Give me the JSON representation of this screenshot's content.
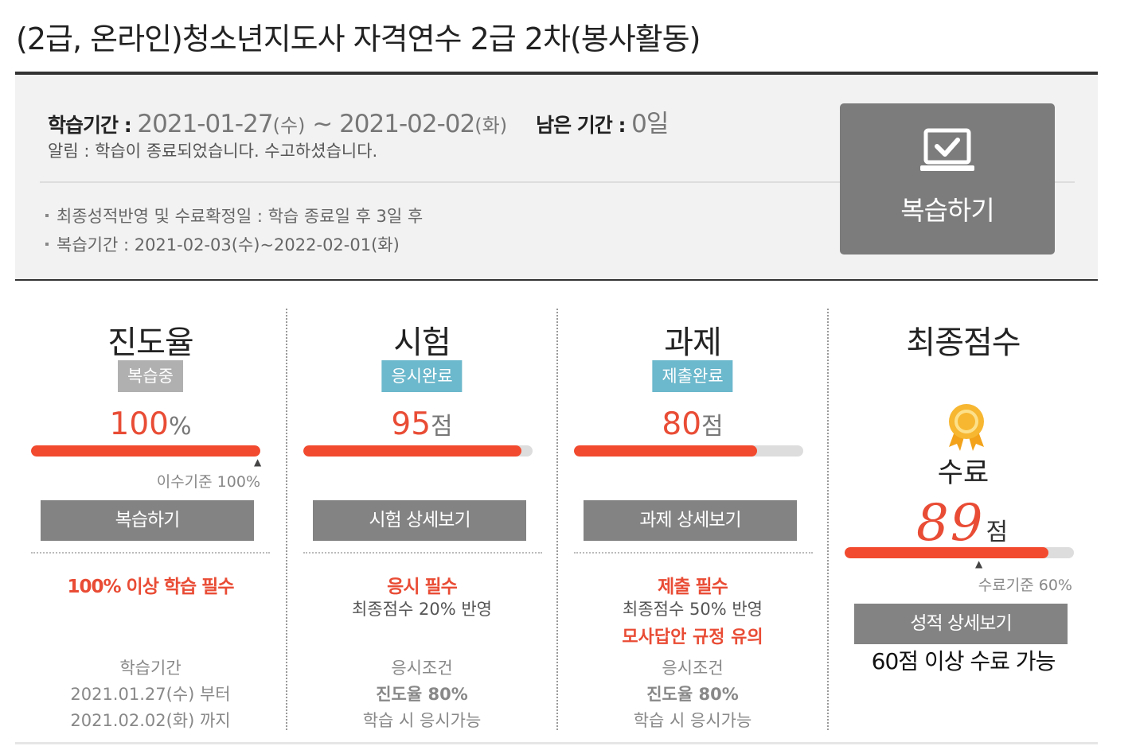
{
  "course": {
    "title": "(2급, 온라인)청소년지도사 자격연수 2급 2차(봉사활동)"
  },
  "info": {
    "period_label": "학습기간 : ",
    "period_start": "2021-01-27",
    "period_start_day": "(수)",
    "period_sep": " ~ ",
    "period_end": "2021-02-02",
    "period_end_day": "(화)",
    "remain_label": "남은 기간 : ",
    "remain_value": "0일",
    "notice": "알림 : 학습이 종료되었습니다. 수고하셨습니다.",
    "bullets": [
      "최종성적반영 및 수료확정일 : 학습 종료일 후 3일 후",
      "복습기간 : 2021-02-03(수)~2022-02-01(화)"
    ],
    "review_button": "복습하기"
  },
  "progress": {
    "title": "진도율",
    "badge": "복습중",
    "value": "100",
    "unit": "%",
    "fill_percent": 100,
    "criterion": "이수기준 100%",
    "button": "복습하기",
    "requirement": "100% 이상 학습 필수",
    "period_title": "학습기간",
    "period_from": "2021.01.27(수) 부터",
    "period_to": "2021.02.02(화) 까지"
  },
  "exam": {
    "title": "시험",
    "badge": "응시완료",
    "value": "95",
    "unit": "점",
    "fill_percent": 95,
    "button": "시험 상세보기",
    "requirement": "응시 필수",
    "reflect": "최종점수 20% 반영",
    "cond_title": "응시조건",
    "cond_value": "진도율 80%",
    "cond_note": "학습 시 응시가능"
  },
  "assignment": {
    "title": "과제",
    "badge": "제출완료",
    "value": "80",
    "unit": "점",
    "fill_percent": 80,
    "button": "과제 상세보기",
    "requirement": "제출 필수",
    "reflect": "최종점수 50% 반영",
    "warning": "모사답안 규정 유의",
    "cond_title": "응시조건",
    "cond_value": "진도율 80%",
    "cond_note": "학습 시 응시가능"
  },
  "final": {
    "title": "최종점수",
    "status": "수료",
    "value": "89",
    "unit": "점",
    "fill_percent": 89,
    "criterion": "수료기준 60%",
    "button": "성적 상세보기",
    "pass_note": "60점 이상 수료 가능"
  },
  "icons": {
    "review": "laptop-check-icon",
    "medal": "medal-icon",
    "marker": "triangle-marker-icon"
  },
  "colors": {
    "accent": "#e94c35",
    "bar_fill": "#f24a2e",
    "badge_gray": "#b0b0b0",
    "badge_blue": "#6cb8cc",
    "button": "#838383"
  }
}
